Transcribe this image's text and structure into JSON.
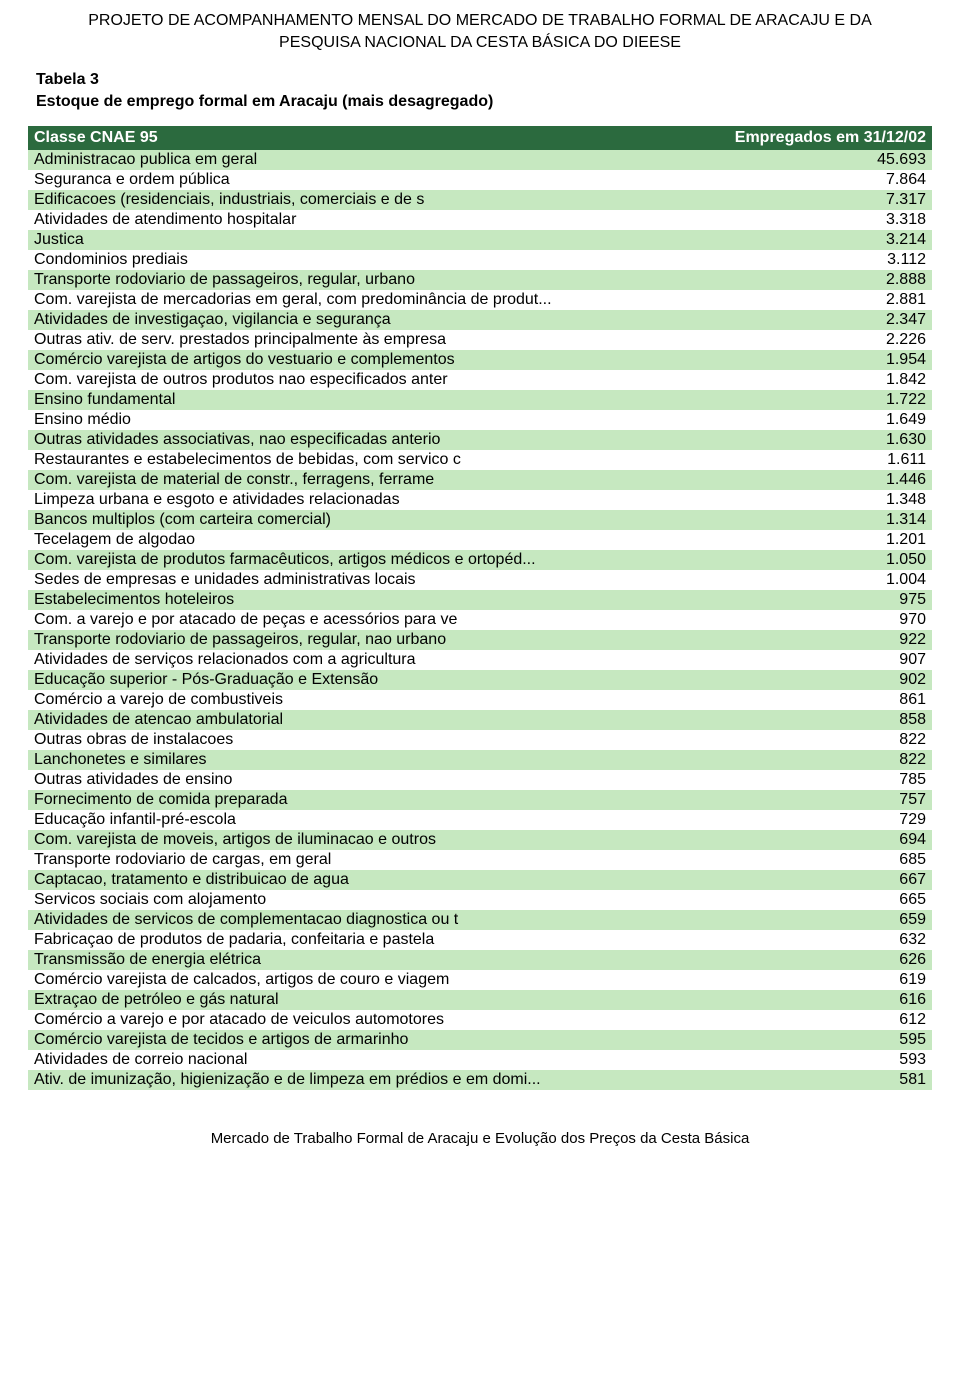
{
  "header": {
    "line1": "PROJETO DE ACOMPANHAMENTO MENSAL DO MERCADO DE TRABALHO FORMAL DE ARACAJU E DA",
    "line2": "PESQUISA NACIONAL DA CESTA BÁSICA DO DIEESE"
  },
  "caption": {
    "line1": "Tabela 3",
    "line2": "Estoque de emprego formal em Aracaju (mais desagregado)"
  },
  "table": {
    "type": "table",
    "header_bg": "#2b6a3e",
    "header_text_color": "#ffffff",
    "row_colors": [
      "#c6e8c0",
      "#ffffff"
    ],
    "font_size_pt": 12,
    "columns": [
      {
        "key": "label",
        "header": "Classe CNAE 95",
        "align": "left"
      },
      {
        "key": "value",
        "header": "Empregados em 31/12/02",
        "align": "right"
      }
    ],
    "rows": [
      {
        "label": "Administracao publica em geral",
        "value": "45.693"
      },
      {
        "label": "Seguranca e ordem pública",
        "value": "7.864"
      },
      {
        "label": "Edificacoes (residenciais, industriais, comerciais e de s",
        "value": "7.317"
      },
      {
        "label": "Atividades de atendimento hospitalar",
        "value": "3.318"
      },
      {
        "label": "Justica",
        "value": "3.214"
      },
      {
        "label": "Condominios prediais",
        "value": "3.112"
      },
      {
        "label": "Transporte rodoviario de passageiros, regular, urbano",
        "value": "2.888"
      },
      {
        "label": "Com. varejista de mercadorias em geral, com predominância de produt...",
        "value": "2.881"
      },
      {
        "label": "Atividades de investigaçao, vigilancia e segurança",
        "value": "2.347"
      },
      {
        "label": "Outras ativ. de serv. prestados principalmente às empresa",
        "value": "2.226"
      },
      {
        "label": "Comércio varejista de artigos do vestuario e complementos",
        "value": "1.954"
      },
      {
        "label": "Com. varejista de outros produtos nao especificados anter",
        "value": "1.842"
      },
      {
        "label": "Ensino fundamental",
        "value": "1.722"
      },
      {
        "label": "Ensino médio",
        "value": "1.649"
      },
      {
        "label": "Outras atividades associativas, nao especificadas anterio",
        "value": "1.630"
      },
      {
        "label": "Restaurantes e estabelecimentos de bebidas, com servico c",
        "value": "1.611"
      },
      {
        "label": "Com. varejista de material de constr., ferragens, ferrame",
        "value": "1.446"
      },
      {
        "label": "Limpeza urbana e esgoto e atividades relacionadas",
        "value": "1.348"
      },
      {
        "label": "Bancos multiplos (com carteira comercial)",
        "value": "1.314"
      },
      {
        "label": "Tecelagem de algodao",
        "value": "1.201"
      },
      {
        "label": "Com. varejista de produtos farmacêuticos, artigos médicos e ortopéd...",
        "value": "1.050"
      },
      {
        "label": "Sedes de empresas e unidades administrativas locais",
        "value": "1.004"
      },
      {
        "label": "Estabelecimentos hoteleiros",
        "value": "975"
      },
      {
        "label": "Com. a varejo e por atacado de peças e acessórios para ve",
        "value": "970"
      },
      {
        "label": "Transporte rodoviario de passageiros, regular, nao urbano",
        "value": "922"
      },
      {
        "label": "Atividades de serviços relacionados com a agricultura",
        "value": "907"
      },
      {
        "label": "Educação superior - Pós-Graduação e Extensão",
        "value": "902"
      },
      {
        "label": "Comércio a varejo de combustiveis",
        "value": "861"
      },
      {
        "label": "Atividades de atencao ambulatorial",
        "value": "858"
      },
      {
        "label": "Outras obras de instalacoes",
        "value": "822"
      },
      {
        "label": "Lanchonetes e similares",
        "value": "822"
      },
      {
        "label": "Outras atividades de ensino",
        "value": "785"
      },
      {
        "label": "Fornecimento de comida preparada",
        "value": "757"
      },
      {
        "label": "Educação infantil-pré-escola",
        "value": "729"
      },
      {
        "label": "Com. varejista de moveis, artigos de iluminacao e outros",
        "value": "694"
      },
      {
        "label": "Transporte rodoviario de cargas, em geral",
        "value": "685"
      },
      {
        "label": "Captacao, tratamento e distribuicao de agua",
        "value": "667"
      },
      {
        "label": "Servicos sociais com alojamento",
        "value": "665"
      },
      {
        "label": "Atividades de servicos de complementacao diagnostica ou t",
        "value": "659"
      },
      {
        "label": "Fabricaçao de  produtos de padaria, confeitaria e pastela",
        "value": "632"
      },
      {
        "label": "Transmissão de energia elétrica",
        "value": "626"
      },
      {
        "label": "Comércio varejista de calcados, artigos de couro e viagem",
        "value": "619"
      },
      {
        "label": "Extraçao de petróleo e gás natural",
        "value": "616"
      },
      {
        "label": "Comércio a varejo e por atacado de veiculos automotores",
        "value": "612"
      },
      {
        "label": "Comércio varejista de tecidos e artigos de armarinho",
        "value": "595"
      },
      {
        "label": "Atividades de correio nacional",
        "value": "593"
      },
      {
        "label": "Ativ. de imunização, higienização e de limpeza em prédios e em domi...",
        "value": "581"
      }
    ]
  },
  "footer": "Mercado de Trabalho Formal de Aracaju e Evolução dos Preços da Cesta Básica"
}
